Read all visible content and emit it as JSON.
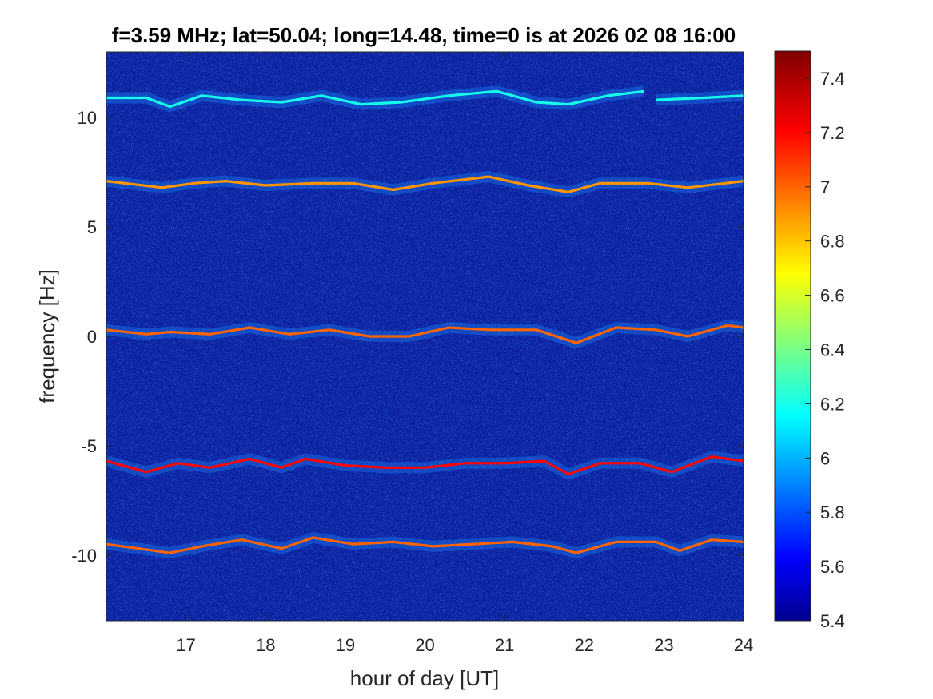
{
  "chart_data": {
    "type": "heatmap",
    "title": "f=3.59 MHz;  lat=50.04; long=14.48, time=0 is at 2026 02 08 16:00",
    "xlabel": "hour of day [UT]",
    "ylabel": "frequency [Hz]",
    "xlim": [
      16,
      24
    ],
    "ylim": [
      -13,
      13
    ],
    "x_ticks": [
      17,
      18,
      19,
      20,
      21,
      22,
      23,
      24
    ],
    "x_tick_labels": [
      "17",
      "18",
      "19",
      "20",
      "21",
      "22",
      "23",
      "24"
    ],
    "y_ticks": [
      10,
      5,
      0,
      -5,
      -10
    ],
    "y_tick_labels": [
      "10",
      "5",
      "0",
      "-5",
      "-10"
    ],
    "colorbar": {
      "colormap": "jet",
      "range": [
        5.4,
        7.5
      ],
      "ticks": [
        7.4,
        7.2,
        7,
        6.8,
        6.6,
        6.4,
        6.2,
        6,
        5.8,
        5.6,
        5.4
      ],
      "tick_labels": [
        "7.4",
        "7.2",
        "7",
        "6.8",
        "6.6",
        "6.4",
        "6.2",
        "6",
        "5.8",
        "5.6",
        "5.4"
      ]
    },
    "background_level": 5.45,
    "traces": [
      {
        "name": "",
        "center_hz": 10.8,
        "level": 6.2,
        "points": [
          [
            16,
            10.9
          ],
          [
            16.5,
            10.9
          ],
          [
            16.8,
            10.5
          ],
          [
            17.2,
            11.0
          ],
          [
            17.7,
            10.8
          ],
          [
            18.2,
            10.7
          ],
          [
            18.7,
            11.0
          ],
          [
            19.2,
            10.6
          ],
          [
            19.7,
            10.7
          ],
          [
            20.3,
            11.0
          ],
          [
            20.9,
            11.2
          ],
          [
            21.4,
            10.7
          ],
          [
            21.8,
            10.6
          ],
          [
            22.3,
            11.0
          ],
          [
            22.75,
            11.2
          ]
        ]
      },
      {
        "name": "",
        "center_hz": 10.8,
        "level": 6.2,
        "points": [
          [
            22.9,
            10.8
          ],
          [
            23.5,
            10.9
          ],
          [
            24,
            11.0
          ]
        ]
      },
      {
        "name": "",
        "center_hz": 7.1,
        "level": 6.9,
        "points": [
          [
            16,
            7.1
          ],
          [
            16.7,
            6.8
          ],
          [
            17.1,
            7.0
          ],
          [
            17.5,
            7.1
          ],
          [
            18.0,
            6.9
          ],
          [
            18.6,
            7.0
          ],
          [
            19.1,
            7.0
          ],
          [
            19.6,
            6.7
          ],
          [
            20.1,
            7.0
          ],
          [
            20.8,
            7.3
          ],
          [
            21.3,
            6.9
          ],
          [
            21.8,
            6.6
          ],
          [
            22.2,
            7.0
          ],
          [
            22.8,
            7.0
          ],
          [
            23.3,
            6.8
          ],
          [
            24,
            7.1
          ]
        ]
      },
      {
        "name": "",
        "center_hz": 0.2,
        "level": 7.0,
        "points": [
          [
            16,
            0.3
          ],
          [
            16.5,
            0.1
          ],
          [
            16.8,
            0.2
          ],
          [
            17.3,
            0.1
          ],
          [
            17.8,
            0.4
          ],
          [
            18.3,
            0.1
          ],
          [
            18.8,
            0.3
          ],
          [
            19.3,
            0.0
          ],
          [
            19.8,
            0.0
          ],
          [
            20.3,
            0.4
          ],
          [
            20.8,
            0.3
          ],
          [
            21.4,
            0.3
          ],
          [
            21.9,
            -0.3
          ],
          [
            22.4,
            0.4
          ],
          [
            22.9,
            0.3
          ],
          [
            23.3,
            0.0
          ],
          [
            23.8,
            0.5
          ],
          [
            24,
            0.4
          ]
        ]
      },
      {
        "name": "",
        "center_hz": -5.8,
        "level": 7.2,
        "points": [
          [
            16,
            -5.7
          ],
          [
            16.5,
            -6.2
          ],
          [
            16.9,
            -5.8
          ],
          [
            17.3,
            -6.0
          ],
          [
            17.8,
            -5.6
          ],
          [
            18.2,
            -6.0
          ],
          [
            18.5,
            -5.6
          ],
          [
            19.0,
            -5.9
          ],
          [
            19.5,
            -6.0
          ],
          [
            20.0,
            -6.0
          ],
          [
            20.5,
            -5.8
          ],
          [
            21.0,
            -5.8
          ],
          [
            21.5,
            -5.7
          ],
          [
            21.8,
            -6.3
          ],
          [
            22.2,
            -5.8
          ],
          [
            22.7,
            -5.8
          ],
          [
            23.1,
            -6.2
          ],
          [
            23.6,
            -5.5
          ],
          [
            24,
            -5.7
          ]
        ]
      },
      {
        "name": "",
        "center_hz": -9.5,
        "level": 7.0,
        "points": [
          [
            16,
            -9.5
          ],
          [
            16.4,
            -9.7
          ],
          [
            16.8,
            -9.9
          ],
          [
            17.2,
            -9.6
          ],
          [
            17.7,
            -9.3
          ],
          [
            18.2,
            -9.7
          ],
          [
            18.6,
            -9.2
          ],
          [
            19.1,
            -9.5
          ],
          [
            19.6,
            -9.4
          ],
          [
            20.1,
            -9.6
          ],
          [
            20.6,
            -9.5
          ],
          [
            21.1,
            -9.4
          ],
          [
            21.6,
            -9.6
          ],
          [
            21.9,
            -9.9
          ],
          [
            22.4,
            -9.4
          ],
          [
            22.9,
            -9.4
          ],
          [
            23.2,
            -9.8
          ],
          [
            23.6,
            -9.3
          ],
          [
            24,
            -9.4
          ]
        ]
      }
    ]
  }
}
